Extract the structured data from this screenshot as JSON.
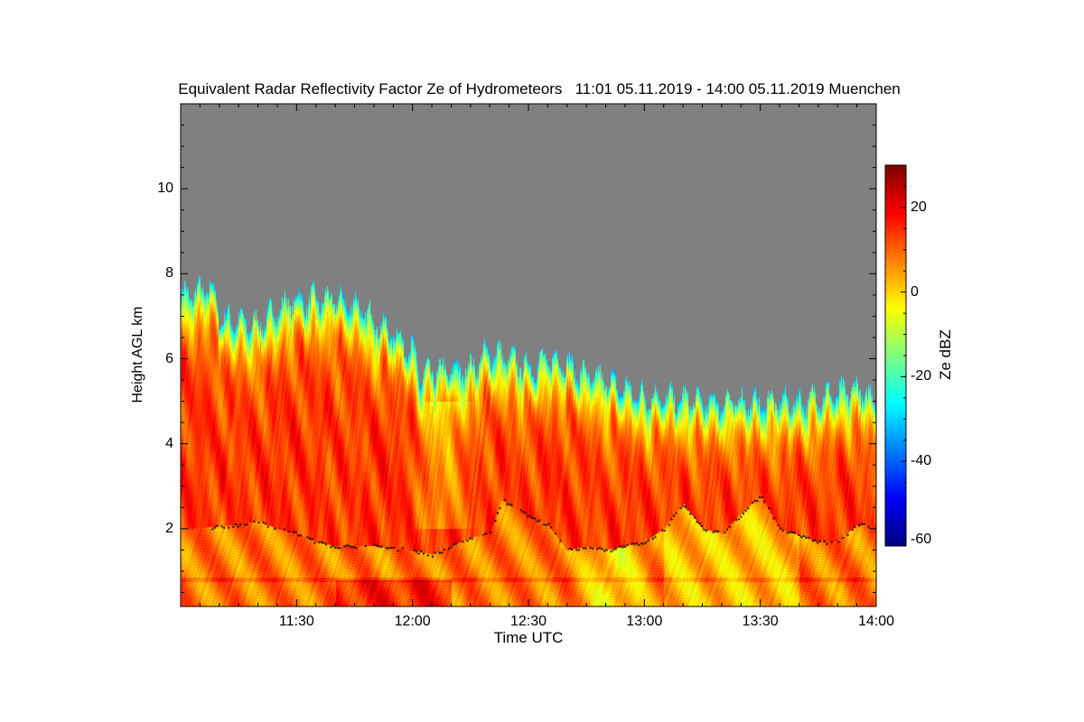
{
  "chart_data": {
    "type": "heatmap",
    "title": "Equivalent Radar Reflectivity Factor Ze of Hydrometeors   11:01 05.11.2019 - 14:00 05.11.2019 Muenchen",
    "xlabel": "Time UTC",
    "ylabel": "Height AGL km",
    "xlim_minutes_after_1100": [
      1,
      180
    ],
    "ylim_km": [
      0.17,
      12
    ],
    "x_ticks": [
      {
        "label": "11:30",
        "min": 30
      },
      {
        "label": "12:00",
        "min": 60
      },
      {
        "label": "12:30",
        "min": 90
      },
      {
        "label": "13:00",
        "min": 120
      },
      {
        "label": "13:30",
        "min": 150
      },
      {
        "label": "14:00",
        "min": 180
      }
    ],
    "y_ticks": [
      {
        "label": "2",
        "v": 2
      },
      {
        "label": "4",
        "v": 4
      },
      {
        "label": "6",
        "v": 6
      },
      {
        "label": "8",
        "v": 8
      },
      {
        "label": "10",
        "v": 10
      }
    ],
    "colorbar": {
      "label": "Ze dBZ",
      "range": [
        -60,
        30
      ],
      "ticks": [
        {
          "label": "20",
          "v": 20
        },
        {
          "label": "0",
          "v": 0
        },
        {
          "label": "-20",
          "v": -20
        },
        {
          "label": "-40",
          "v": -40
        },
        {
          "label": "-60",
          "v": -60
        }
      ],
      "colormap": "jet"
    },
    "no_data_color": "#808080",
    "echo_top_km": [
      [
        0,
        7.5
      ],
      [
        5,
        7.6
      ],
      [
        8,
        7.7
      ],
      [
        10,
        7.0
      ],
      [
        15,
        6.9
      ],
      [
        20,
        6.8
      ],
      [
        25,
        7.2
      ],
      [
        30,
        7.4
      ],
      [
        40,
        7.4
      ],
      [
        45,
        7.3
      ],
      [
        50,
        6.9
      ],
      [
        55,
        6.6
      ],
      [
        60,
        6.2
      ],
      [
        62,
        5.6
      ],
      [
        65,
        5.7
      ],
      [
        75,
        5.8
      ],
      [
        80,
        6.2
      ],
      [
        90,
        5.8
      ],
      [
        95,
        6.0
      ],
      [
        100,
        5.9
      ],
      [
        105,
        5.6
      ],
      [
        110,
        5.5
      ],
      [
        120,
        5.1
      ],
      [
        125,
        5.1
      ],
      [
        135,
        5.0
      ],
      [
        150,
        5.0
      ],
      [
        160,
        5.0
      ],
      [
        170,
        5.2
      ],
      [
        175,
        5.3
      ],
      [
        180,
        5.0
      ]
    ],
    "melting_layer_km": [
      [
        8,
        2.05
      ],
      [
        15,
        2.1
      ],
      [
        20,
        2.2
      ],
      [
        25,
        2.0
      ],
      [
        30,
        1.9
      ],
      [
        35,
        1.7
      ],
      [
        40,
        1.6
      ],
      [
        50,
        1.6
      ],
      [
        60,
        1.5
      ],
      [
        65,
        1.4
      ],
      [
        70,
        1.6
      ],
      [
        75,
        1.8
      ],
      [
        80,
        1.9
      ],
      [
        83,
        2.7
      ],
      [
        90,
        2.3
      ],
      [
        95,
        2.1
      ],
      [
        100,
        1.5
      ],
      [
        105,
        1.6
      ],
      [
        110,
        1.5
      ],
      [
        115,
        1.6
      ],
      [
        120,
        1.7
      ],
      [
        125,
        2.0
      ],
      [
        130,
        2.6
      ],
      [
        135,
        2.0
      ],
      [
        140,
        1.9
      ],
      [
        150,
        2.8
      ],
      [
        155,
        2.0
      ],
      [
        165,
        1.7
      ],
      [
        170,
        1.7
      ],
      [
        175,
        2.1
      ]
    ]
  }
}
